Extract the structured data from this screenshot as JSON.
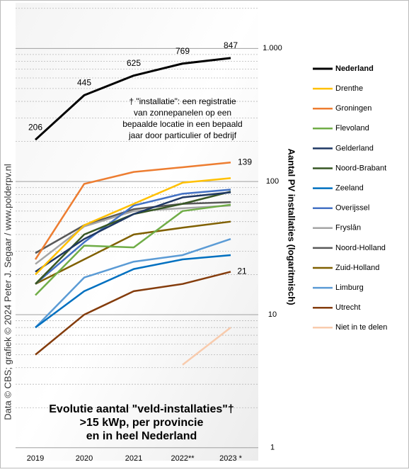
{
  "chart_data": {
    "type": "line",
    "title": "Evolutie aantal \"veld-installaties\"†",
    "subtitle": [
      ">15 kWp, per provincie",
      "en in heel Nederland"
    ],
    "y_axis_label": "Aantal PV installaties (logaritmisch)",
    "source": "Data © CBS; grafiek © 2024 Peter J. Segaar / www.polderpv.nl",
    "annotation": [
      "† \"installatie\": een registratie",
      "van zonnepanelen op een",
      "bepaalde locatie in een bepaald",
      "jaar door particulier of bedrijf"
    ],
    "log_scale": true,
    "ylim": [
      0.8,
      2200
    ],
    "yticks": [
      1,
      10,
      100,
      {
        "value": 1000,
        "label": "1.000"
      }
    ],
    "minor_gridlines": [
      2,
      3,
      4,
      5,
      6,
      7,
      8,
      9,
      20,
      30,
      40,
      50,
      60,
      70,
      80,
      90,
      200,
      300,
      400,
      500,
      600,
      700,
      800,
      900,
      2000
    ],
    "categories": [
      "2019",
      "2020",
      "2021",
      "2022**",
      "2023 *"
    ],
    "series": [
      {
        "name": "Nederland",
        "color": "#000000",
        "values": [
          206,
          445,
          625,
          769,
          847
        ]
      },
      {
        "name": "Drenthe",
        "color": "#ffc000",
        "values": [
          20,
          47,
          68,
          98,
          106
        ]
      },
      {
        "name": "Groningen",
        "color": "#ed7d31",
        "values": [
          26,
          96,
          118,
          128,
          139
        ]
      },
      {
        "name": "Flevoland",
        "color": "#70ad47",
        "values": [
          14,
          33,
          32,
          60,
          67
        ]
      },
      {
        "name": "Gelderland",
        "color": "#1f3864",
        "values": [
          21,
          37,
          57,
          76,
          83
        ]
      },
      {
        "name": "Noord-Brabant",
        "color": "#375623",
        "values": [
          17,
          40,
          57,
          68,
          84
        ]
      },
      {
        "name": "Zeeland",
        "color": "#0070c0",
        "values": [
          8,
          15,
          22,
          26,
          28
        ]
      },
      {
        "name": "Overijssel",
        "color": "#4472c4",
        "values": [
          17,
          35,
          66,
          81,
          87
        ]
      },
      {
        "name": "Fryslân",
        "color": "#a5a5a5",
        "values": [
          24,
          46,
          60,
          63,
          66
        ]
      },
      {
        "name": "Noord-Holland",
        "color": "#595959",
        "values": [
          29,
          47,
          62,
          68,
          70
        ]
      },
      {
        "name": "Zuid-Holland",
        "color": "#806000",
        "values": [
          17,
          26,
          40,
          45,
          50
        ]
      },
      {
        "name": "Limburg",
        "color": "#5b9bd5",
        "values": [
          8,
          19,
          25,
          28,
          37
        ]
      },
      {
        "name": "Utrecht",
        "color": "#843c0c",
        "values": [
          5,
          10,
          15,
          17,
          21
        ]
      },
      {
        "name": "Niet in te delen",
        "color": "#f8cbad",
        "values": [
          null,
          null,
          null,
          4.2,
          8
        ]
      }
    ]
  }
}
